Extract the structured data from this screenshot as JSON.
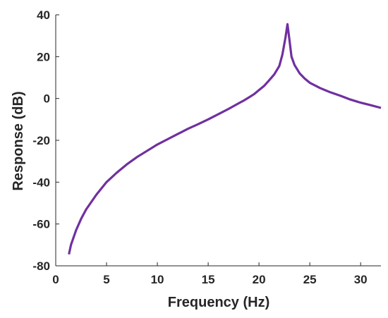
{
  "chart_data": {
    "type": "line",
    "title": "",
    "xlabel": "Frequency (Hz)",
    "ylabel": "Response (dB)",
    "xlim": [
      0,
      32
    ],
    "ylim": [
      -80,
      40
    ],
    "xticks": [
      0,
      5,
      10,
      15,
      20,
      25,
      30
    ],
    "yticks": [
      40,
      20,
      0,
      -20,
      -40,
      -60,
      -80
    ],
    "xtick_labels": [
      "0",
      "5",
      "10",
      "15",
      "20",
      "25",
      "30"
    ],
    "ytick_labels": [
      "40",
      "20",
      "0",
      "-20",
      "-40",
      "-60",
      "-80"
    ],
    "grid": false,
    "legend": "none",
    "series": [
      {
        "color": "#7030A0",
        "x": [
          1.3,
          1.5,
          2,
          2.5,
          3,
          3.5,
          4,
          5,
          6,
          7,
          8,
          9,
          10,
          11,
          12,
          13,
          14,
          15,
          16,
          17,
          18,
          18.5,
          19,
          19.5,
          20,
          20.5,
          21,
          21.5,
          22,
          22.3,
          22.6,
          22.8,
          23,
          23.2,
          23.5,
          24,
          24.5,
          25,
          26,
          27,
          28,
          29,
          30,
          31,
          32
        ],
        "y": [
          -74.5,
          -70,
          -63,
          -57.5,
          -53,
          -49.5,
          -46,
          -40,
          -35.5,
          -31.5,
          -28,
          -25,
          -22,
          -19.5,
          -17,
          -14.5,
          -12.3,
          -10,
          -7.5,
          -5,
          -2.3,
          -1,
          0.5,
          2,
          4,
          6,
          8.7,
          11.5,
          15.5,
          21,
          29,
          35.5,
          28,
          20,
          16,
          12,
          9.5,
          7.5,
          5,
          3,
          1.3,
          -0.5,
          -2,
          -3.2,
          -4.5
        ]
      }
    ]
  }
}
